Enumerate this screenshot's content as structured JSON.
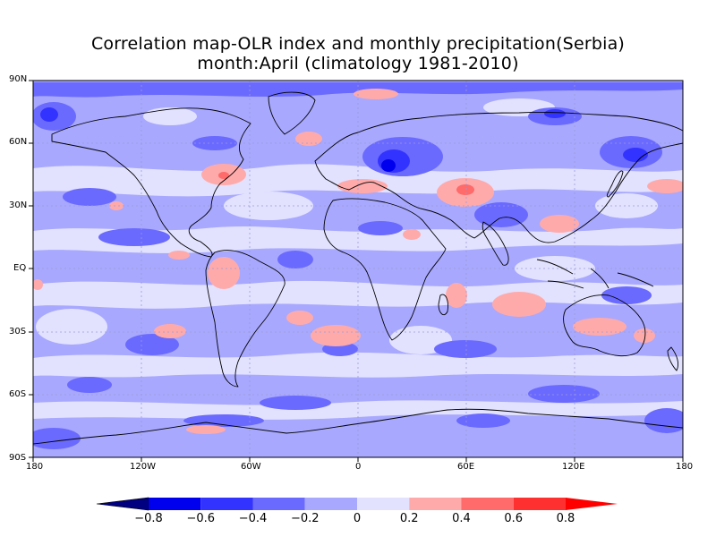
{
  "title": {
    "line1": "Correlation map-OLR index and monthly precipitation(Serbia)",
    "line2": "month:April (climatology 1981-2010)"
  },
  "map": {
    "lat_labels": [
      "90N",
      "60N",
      "30N",
      "EQ",
      "30S",
      "60S",
      "90S"
    ],
    "lon_labels": [
      "180",
      "120W",
      "60W",
      "0",
      "60E",
      "120E",
      "180"
    ],
    "projection": "cylindrical equidistant",
    "lon_range": [
      -180,
      180
    ],
    "lat_range": [
      -90,
      90
    ],
    "gridlines": "dotted, every 30 degrees"
  },
  "colorbar": {
    "levels": [
      -0.8,
      -0.6,
      -0.4,
      -0.2,
      0,
      0.2,
      0.4,
      0.6,
      0.8
    ],
    "tick_labels": [
      "-0.8",
      "-0.6",
      "-0.4",
      "-0.2",
      "0",
      "0.2",
      "0.4",
      "0.6",
      "0.8"
    ],
    "colors": [
      "#000080",
      "#0000ee",
      "#3333ff",
      "#6a6aff",
      "#a8a8ff",
      "#e2e2ff",
      "#ffaaaa",
      "#ff6a6a",
      "#ff3030",
      "#ff0000"
    ]
  },
  "colors": {
    "background_field": "#a8a8ff",
    "coast": "#000000",
    "grid": "#b0b0b0"
  }
}
